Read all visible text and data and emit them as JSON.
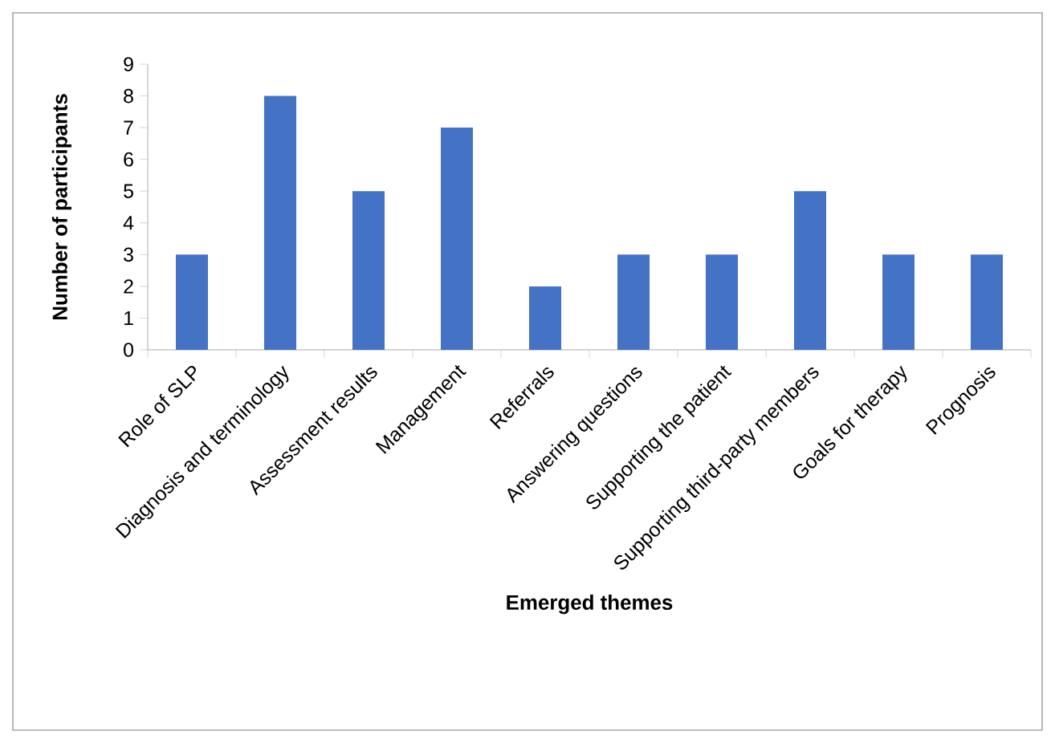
{
  "chart_data": {
    "type": "bar",
    "xlabel": "Emerged themes",
    "ylabel": "Number of participants",
    "categories": [
      "Role of SLP",
      "Diagnosis and terminology",
      "Assessment results",
      "Management",
      "Referrals",
      "Answering questions",
      "Supporting the patient",
      "Supporting third-party members",
      "Goals for therapy",
      "Prognosis"
    ],
    "values": [
      3,
      8,
      5,
      7,
      2,
      3,
      3,
      5,
      3,
      3
    ],
    "color": "#4472c4",
    "ylim": [
      0,
      9
    ],
    "yticks": [
      0,
      1,
      2,
      3,
      4,
      5,
      6,
      7,
      8,
      9
    ]
  }
}
